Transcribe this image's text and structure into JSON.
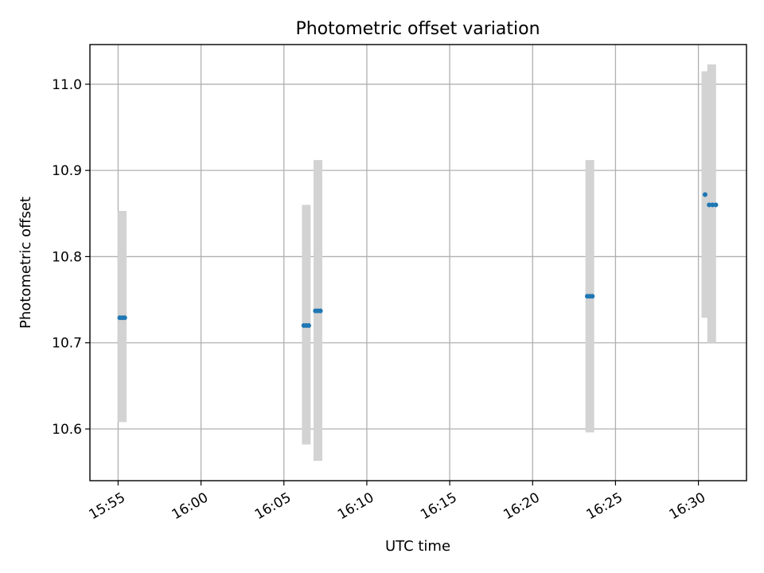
{
  "chart_data": {
    "type": "scatter",
    "title": "Photometric offset variation",
    "xlabel": "UTC time",
    "ylabel": "Photometric offset",
    "x_ticks": [
      "15:55",
      "16:00",
      "16:05",
      "16:10",
      "16:15",
      "16:20",
      "16:25",
      "16:30"
    ],
    "x_tick_minutes": [
      955,
      960,
      965,
      970,
      975,
      980,
      985,
      990
    ],
    "y_ticks": [
      "10.6",
      "10.7",
      "10.8",
      "10.9",
      "11.0"
    ],
    "y_tick_values": [
      10.6,
      10.7,
      10.8,
      10.9,
      11.0
    ],
    "xlim_minutes": [
      953.3,
      992.9
    ],
    "ylim": [
      10.54,
      11.046
    ],
    "grid": true,
    "marker_color": "#1f77b4",
    "errorbar_color": "#d3d3d3",
    "points": [
      {
        "t": 955.1,
        "y": 10.729
      },
      {
        "t": 955.25,
        "y": 10.729
      },
      {
        "t": 955.4,
        "y": 10.729
      },
      {
        "t": 966.2,
        "y": 10.72
      },
      {
        "t": 966.35,
        "y": 10.72
      },
      {
        "t": 966.5,
        "y": 10.72
      },
      {
        "t": 966.9,
        "y": 10.737
      },
      {
        "t": 967.05,
        "y": 10.737
      },
      {
        "t": 967.2,
        "y": 10.737
      },
      {
        "t": 983.3,
        "y": 10.754
      },
      {
        "t": 983.45,
        "y": 10.754
      },
      {
        "t": 983.6,
        "y": 10.754
      },
      {
        "t": 990.4,
        "y": 10.872
      },
      {
        "t": 990.65,
        "y": 10.86
      },
      {
        "t": 990.85,
        "y": 10.86
      },
      {
        "t": 991.05,
        "y": 10.86
      }
    ],
    "error_bars": [
      {
        "t": 955.25,
        "low": 10.608,
        "high": 10.853
      },
      {
        "t": 966.35,
        "low": 10.582,
        "high": 10.86
      },
      {
        "t": 967.05,
        "low": 10.563,
        "high": 10.912
      },
      {
        "t": 983.45,
        "low": 10.596,
        "high": 10.912
      },
      {
        "t": 990.45,
        "low": 10.729,
        "high": 11.015
      },
      {
        "t": 990.8,
        "low": 10.7,
        "high": 11.023
      }
    ]
  }
}
